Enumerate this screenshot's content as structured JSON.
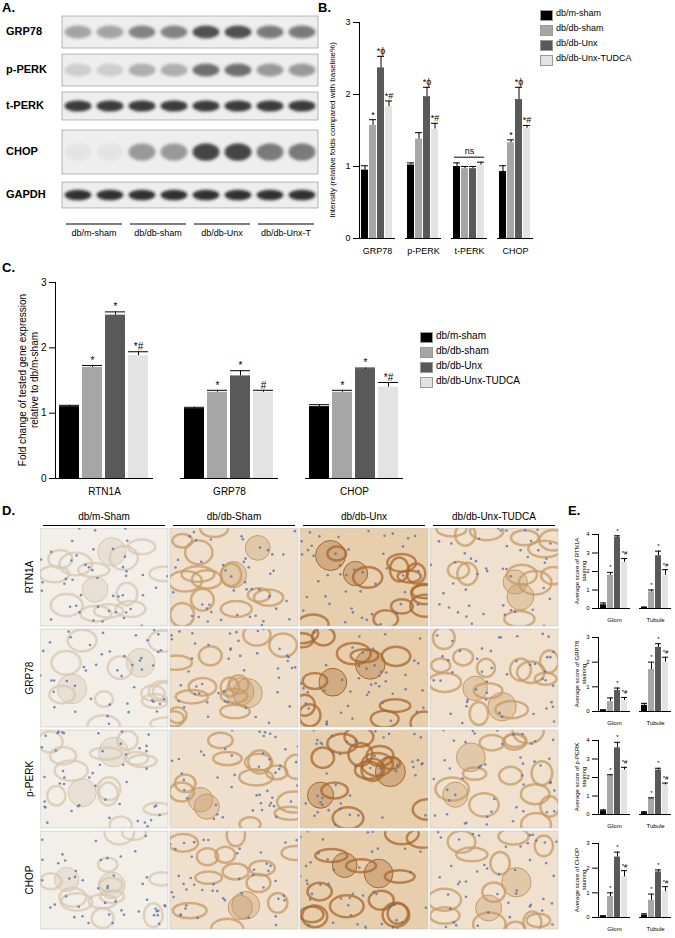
{
  "chart_data": [
    {
      "type": "bar",
      "panel": "B.",
      "legend": "right",
      "ylabel": "Intensity (relative folds compared with baseline%)",
      "categories": [
        "GRP78",
        "p-PERK",
        "t-PERK",
        "CHOP"
      ],
      "ylim": [
        0,
        3
      ],
      "yticks": [
        0,
        1,
        2,
        3
      ],
      "group_annotations": [
        {
          "category": "t-PERK",
          "text": "ns"
        }
      ],
      "series": [
        {
          "name": "db/m-sham",
          "color": "#000000",
          "values": [
            0.95,
            1.02,
            1.0,
            0.93
          ],
          "errors": [
            0.06,
            0.03,
            0.05,
            0.08
          ],
          "annotations": [
            null,
            null,
            null,
            null
          ]
        },
        {
          "name": "db/db-sham",
          "color": "#a6a6a6",
          "values": [
            1.57,
            1.38,
            0.97,
            1.33
          ],
          "errors": [
            0.08,
            0.09,
            0.03,
            0.04
          ],
          "annotations": [
            "*",
            null,
            null,
            "*"
          ]
        },
        {
          "name": "db/db-Unx",
          "color": "#595959",
          "values": [
            2.37,
            1.97,
            0.97,
            1.93
          ],
          "errors": [
            0.16,
            0.13,
            0.03,
            0.17
          ],
          "annotations": [
            "*ϕ",
            "*ϕ",
            null,
            "*ϕ"
          ]
        },
        {
          "name": "db/db-Unx-TUDCA",
          "color": "#e3e3e3",
          "values": [
            1.83,
            1.52,
            1.02,
            1.53
          ],
          "errors": [
            0.08,
            0.08,
            0.04,
            0.04
          ],
          "annotations": [
            "*#",
            "*#",
            null,
            "*#"
          ]
        }
      ]
    },
    {
      "type": "bar",
      "panel": "C.",
      "legend": "right",
      "ylabel": "Fold change of tested gene expression relative to db/m-sham",
      "categories": [
        "RTN1A",
        "GRP78",
        "CHOP"
      ],
      "ylim": [
        0,
        3
      ],
      "yticks": [
        0,
        1,
        2,
        3
      ],
      "series": [
        {
          "name": "db/m-sham",
          "color": "#000000",
          "values": [
            1.1,
            1.07,
            1.1
          ],
          "errors": [
            0.02,
            0.02,
            0.03
          ],
          "annotations": [
            null,
            null,
            null
          ]
        },
        {
          "name": "db/db-sham",
          "color": "#a6a6a6",
          "values": [
            1.7,
            1.32,
            1.32
          ],
          "errors": [
            0.03,
            0.03,
            0.03
          ],
          "annotations": [
            "*",
            "*",
            "*"
          ]
        },
        {
          "name": "db/db-Unx",
          "color": "#595959",
          "values": [
            2.5,
            1.57,
            1.67
          ],
          "errors": [
            0.05,
            0.08,
            0.02
          ],
          "annotations": [
            "*",
            "*",
            "*"
          ]
        },
        {
          "name": "db/db-Unx-TUDCA",
          "color": "#e3e3e3",
          "values": [
            1.88,
            1.32,
            1.4
          ],
          "errors": [
            0.06,
            0.03,
            0.07
          ],
          "annotations": [
            "*#",
            "#",
            "*#"
          ]
        }
      ]
    },
    {
      "type": "bar",
      "panel": "E.",
      "ylabel": "Average score of RTN1A staining",
      "categories": [
        "Glom",
        "Tubule"
      ],
      "ylim": [
        0,
        4
      ],
      "yticks": [
        0,
        1,
        2,
        3,
        4
      ],
      "series": [
        {
          "name": "db/m-sham",
          "color": "#000000",
          "values": [
            0.2,
            0.05
          ],
          "errors": [
            0.1,
            0.03
          ],
          "annotations": [
            null,
            null
          ]
        },
        {
          "name": "db/db-sham",
          "color": "#a6a6a6",
          "values": [
            1.8,
            0.9
          ],
          "errors": [
            0.15,
            0.1
          ],
          "annotations": [
            "*",
            "*"
          ]
        },
        {
          "name": "db/db-Unx",
          "color": "#595959",
          "values": [
            3.85,
            2.85
          ],
          "errors": [
            0.08,
            0.25
          ],
          "annotations": [
            "*",
            "*"
          ]
        },
        {
          "name": "db/db-Unx-TUDCA",
          "color": "#e3e3e3",
          "values": [
            2.5,
            1.8
          ],
          "errors": [
            0.2,
            0.3
          ],
          "annotations": [
            "*#",
            "*#"
          ]
        }
      ]
    },
    {
      "type": "bar",
      "ylabel": "Average score of GRP78 staining",
      "categories": [
        "Glom",
        "Tubule"
      ],
      "ylim": [
        0,
        3
      ],
      "yticks": [
        0,
        1,
        2,
        3
      ],
      "series": [
        {
          "name": "db/m-sham",
          "color": "#000000",
          "values": [
            0.05,
            0.25
          ],
          "errors": [
            0.02,
            0.08
          ],
          "annotations": [
            null,
            null
          ]
        },
        {
          "name": "db/db-sham",
          "color": "#a6a6a6",
          "values": [
            0.4,
            1.7
          ],
          "errors": [
            0.15,
            0.3
          ],
          "annotations": [
            null,
            "*"
          ]
        },
        {
          "name": "db/db-Unx",
          "color": "#595959",
          "values": [
            0.85,
            2.6
          ],
          "errors": [
            0.1,
            0.15
          ],
          "annotations": [
            "*",
            "*"
          ]
        },
        {
          "name": "db/db-Unx-TUDCA",
          "color": "#e3e3e3",
          "values": [
            0.45,
            2.0
          ],
          "errors": [
            0.12,
            0.2
          ],
          "annotations": [
            "*#",
            "*#"
          ]
        }
      ]
    },
    {
      "type": "bar",
      "ylabel": "Average score of p-PERK staining",
      "categories": [
        "Glom",
        "Tubule"
      ],
      "ylim": [
        0,
        4
      ],
      "yticks": [
        0,
        1,
        2,
        3,
        4
      ],
      "series": [
        {
          "name": "db/m-sham",
          "color": "#000000",
          "values": [
            0.2,
            0.1
          ],
          "errors": [
            0.05,
            0.05
          ],
          "annotations": [
            null,
            null
          ]
        },
        {
          "name": "db/db-sham",
          "color": "#a6a6a6",
          "values": [
            2.1,
            0.85
          ],
          "errors": [
            0.05,
            0.05
          ],
          "annotations": [
            "*",
            "*"
          ]
        },
        {
          "name": "db/db-Unx",
          "color": "#595959",
          "values": [
            3.6,
            2.4
          ],
          "errors": [
            0.3,
            0.1
          ],
          "annotations": [
            "*",
            "*"
          ]
        },
        {
          "name": "db/db-Unx-TUDCA",
          "color": "#e3e3e3",
          "values": [
            2.4,
            1.6
          ],
          "errors": [
            0.15,
            0.1
          ],
          "annotations": [
            "*#",
            "*#"
          ]
        }
      ]
    },
    {
      "type": "bar",
      "ylabel": "Average score of CHOP staining",
      "categories": [
        "Glom",
        "Tubule"
      ],
      "ylim": [
        0,
        3
      ],
      "yticks": [
        0,
        1,
        2,
        3
      ],
      "series": [
        {
          "name": "db/m-sham",
          "color": "#000000",
          "values": [
            0.05,
            0.1
          ],
          "errors": [
            0.02,
            0.05
          ],
          "annotations": [
            null,
            null
          ]
        },
        {
          "name": "db/db-sham",
          "color": "#a6a6a6",
          "values": [
            0.85,
            0.7
          ],
          "errors": [
            0.15,
            0.25
          ],
          "annotations": [
            "*",
            "*"
          ]
        },
        {
          "name": "db/db-Unx",
          "color": "#595959",
          "values": [
            2.45,
            1.85
          ],
          "errors": [
            0.2,
            0.08
          ],
          "annotations": [
            "*",
            "*"
          ]
        },
        {
          "name": "db/db-Unx-TUDCA",
          "color": "#e3e3e3",
          "values": [
            1.65,
            1.05
          ],
          "errors": [
            0.25,
            0.2
          ],
          "annotations": [
            "*#",
            "*#"
          ]
        }
      ]
    }
  ],
  "blot": {
    "label": "A.",
    "rows": [
      "GRP78",
      "p-PERK",
      "t-PERK",
      "CHOP",
      "GAPDH"
    ],
    "groups": [
      "db/m-sham",
      "db/db-sham",
      "db/db-Unx",
      "db/db-Unx-T"
    ]
  },
  "ihc": {
    "label": "D.",
    "columns": [
      "db/m-Sham",
      "db/db-Sham",
      "db/db-Unx",
      "db/db-Unx-TUDCA"
    ],
    "rows": [
      "RTN1A",
      "GRP78",
      "p-PERK",
      "CHOP"
    ]
  }
}
